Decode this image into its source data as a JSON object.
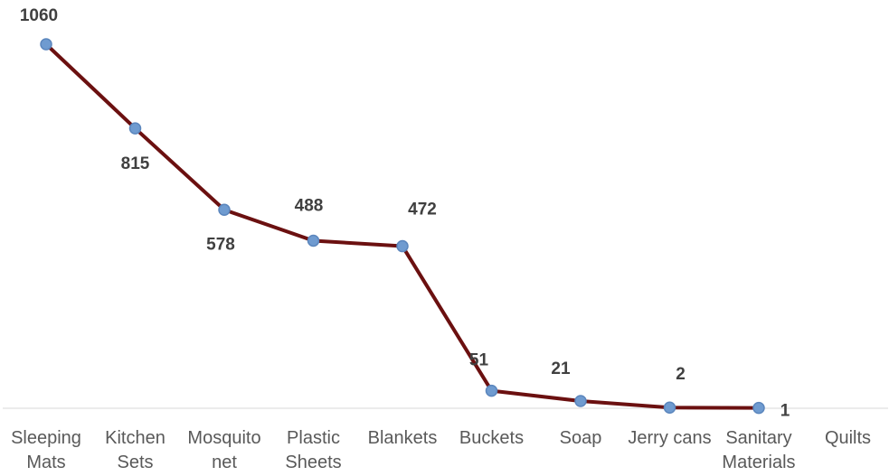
{
  "chart_data": {
    "type": "line",
    "title": "",
    "xlabel": "",
    "ylabel": "",
    "grid": false,
    "categories": [
      [
        "Sleeping",
        "Mats"
      ],
      [
        "Kitchen",
        "Sets"
      ],
      [
        "Mosquito",
        "net"
      ],
      [
        "Plastic",
        "Sheets"
      ],
      [
        "Blankets"
      ],
      [
        "Buckets"
      ],
      [
        "Soap"
      ],
      [
        "Jerry cans"
      ],
      [
        "Sanitary",
        "Materials"
      ],
      [
        "Quilts"
      ]
    ],
    "series": [
      {
        "values": [
          1060,
          815,
          578,
          488,
          472,
          51,
          21,
          2,
          1,
          null
        ],
        "data_labels": [
          "1060",
          "815",
          "578",
          "488",
          "472",
          "51",
          "21",
          "2",
          "1",
          ""
        ]
      }
    ],
    "ylim": [
      0,
      1060
    ],
    "colors": {
      "line": "#6b1010",
      "marker": "#6f9bd0"
    }
  }
}
